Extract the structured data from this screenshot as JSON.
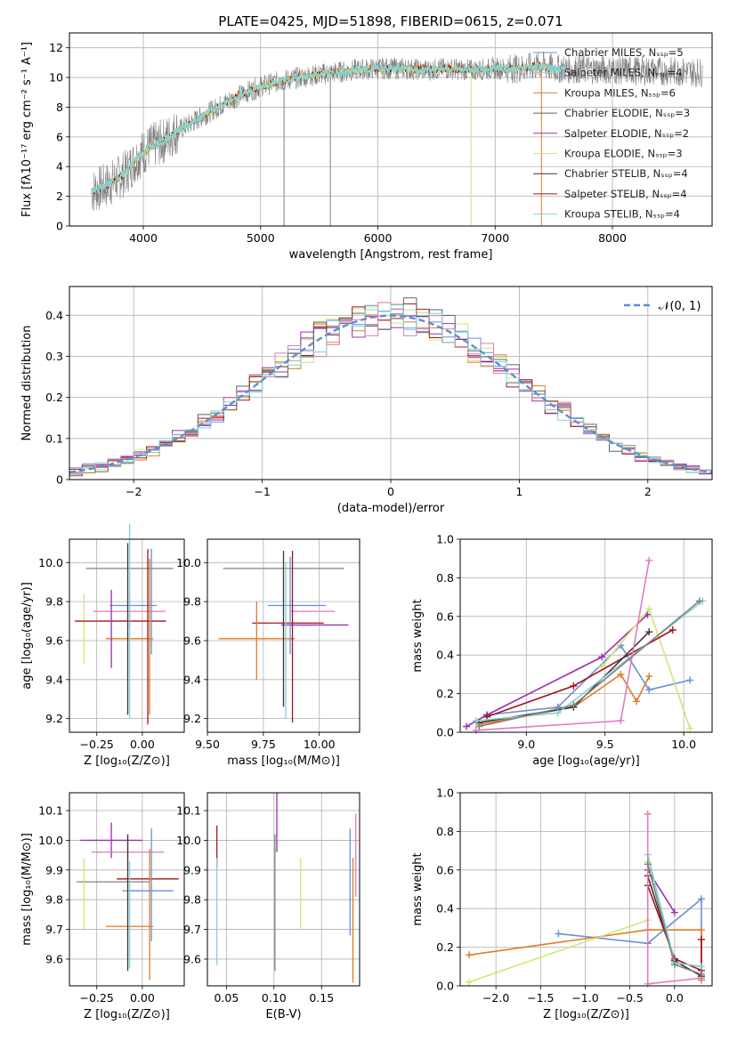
{
  "colors": {
    "chabrier_miles": "#6a8fd8",
    "salpeter_miles": "#9ad2d6",
    "kroupa_miles": "#e07b25",
    "chabrier_elodie": "#5a6a5a",
    "salpeter_elodie": "#9b2fae",
    "kroupa_elodie": "#cfe67a",
    "chabrier_stelib": "#4a3030",
    "salpeter_stelib": "#a3141e",
    "kroupa_stelib": "#7fd3d8",
    "pink": "#e37cba",
    "gray": "#808080",
    "normal": "#5f8ed0"
  },
  "chart_data": [
    {
      "id": "spectrum",
      "type": "line",
      "title": "PLATE=0425, MJD=51898, FIBERID=0615, z=0.071",
      "xlabel": "wavelength [Angstrom, rest frame]",
      "ylabel": "Flux [fλ10⁻¹⁷ erg cm⁻² s⁻¹ A⁻¹]",
      "xlim": [
        3370,
        8850
      ],
      "ylim": [
        0,
        13
      ],
      "xticks": [
        4000,
        5000,
        6000,
        7000,
        8000
      ],
      "yticks": [
        0,
        2,
        4,
        6,
        8,
        10,
        12
      ],
      "legend_position": "top-right",
      "legend": [
        "Chabrier MILES, Nₛₛₚ=5",
        "Salpeter MILES, Nₛₛₚ=4",
        "Kroupa MILES, Nₛₛₚ=6",
        "Chabrier ELODIE, Nₛₛₚ=3",
        "Salpeter ELODIE, Nₛₛₚ=2",
        "Kroupa ELODIE, Nₛₛₚ=3",
        "Chabrier STELIB, Nₛₛₚ=4",
        "Salpeter STELIB, Nₛₛₚ=4",
        "Kroupa STELIB, Nₛₛₚ=4"
      ],
      "continuum": [
        [
          3550,
          2.3
        ],
        [
          3650,
          2.6
        ],
        [
          3750,
          3.0
        ],
        [
          3850,
          3.6
        ],
        [
          3950,
          4.6
        ],
        [
          4050,
          5.3
        ],
        [
          4150,
          5.6
        ],
        [
          4250,
          6.2
        ],
        [
          4400,
          6.9
        ],
        [
          4550,
          7.6
        ],
        [
          4700,
          8.3
        ],
        [
          4850,
          8.9
        ],
        [
          5000,
          9.4
        ],
        [
          5200,
          9.8
        ],
        [
          5400,
          10.1
        ],
        [
          5600,
          10.3
        ],
        [
          5800,
          10.5
        ],
        [
          6000,
          10.6
        ],
        [
          6200,
          10.6
        ],
        [
          6400,
          10.5
        ],
        [
          6600,
          10.6
        ],
        [
          6800,
          10.5
        ],
        [
          7000,
          10.6
        ],
        [
          7200,
          10.6
        ],
        [
          7400,
          10.8
        ],
        [
          7500,
          10.6
        ]
      ],
      "data_extent": [
        3560,
        8770
      ],
      "deep_lines": [
        [
          5200,
          0.0
        ],
        [
          5595,
          0.0
        ],
        [
          6795,
          0.0
        ],
        [
          7395,
          0.0
        ]
      ]
    },
    {
      "id": "residuals",
      "type": "histogram",
      "xlabel": "(data-model)/error",
      "ylabel": "Normed distribution",
      "xlim": [
        -2.5,
        2.5
      ],
      "ylim": [
        0,
        0.47
      ],
      "xticks": [
        -2,
        -1,
        0,
        1,
        2
      ],
      "yticks": [
        0.0,
        0.1,
        0.2,
        0.3,
        0.4
      ],
      "bin_width": 0.1,
      "legend": "𝒩(0, 1)",
      "legend_position": "top-right",
      "reference": {
        "name": "𝒩(0, 1)",
        "mu": 0,
        "sigma": 1
      }
    },
    {
      "id": "age_vs_Z",
      "type": "errorbar",
      "xlabel": "Z [log₁₀(Z/Z⊙)]",
      "ylabel": "age  [log₁₀(age/yr)]",
      "xlim": [
        -0.4,
        0.23
      ],
      "ylim": [
        9.13,
        10.12
      ],
      "xticks": [
        -0.25,
        0.0
      ],
      "yticks": [
        9.2,
        9.4,
        9.6,
        9.8,
        10.0
      ],
      "points": [
        {
          "c": "gray",
          "x": -0.07,
          "xe": 0.24,
          "y": 9.97,
          "ye": 0.0
        },
        {
          "c": "chabrier_miles",
          "x": -0.05,
          "xe": 0.13,
          "y": 9.78,
          "ye": 0.0
        },
        {
          "c": "pink",
          "x": -0.07,
          "xe": 0.2,
          "y": 9.75,
          "ye": 0.09
        },
        {
          "c": "kroupa_elodie",
          "x": -0.32,
          "xe": 0.0,
          "y": 9.66,
          "ye": 0.18
        },
        {
          "c": "salpeter_stelib",
          "x": -0.12,
          "xe": 0.25,
          "y": 9.7,
          "ye": 0.0
        },
        {
          "c": "kroupa_miles",
          "x": -0.07,
          "xe": 0.13,
          "y": 9.61,
          "ye": 0.0
        },
        {
          "c": "salpeter_elodie",
          "x": -0.17,
          "xe": 0.0,
          "y": 9.66,
          "ye": 0.2
        },
        {
          "c": "chabrier_stelib",
          "x": -0.08,
          "xe": 0.0,
          "y": 9.66,
          "ye": 0.44
        },
        {
          "c": "kroupa_stelib",
          "x": -0.07,
          "xe": 0.0,
          "y": 9.7,
          "ye": 0.5
        },
        {
          "c": "salpeter_stelib",
          "x": 0.03,
          "xe": 0.0,
          "y": 9.62,
          "ye": 0.45
        },
        {
          "c": "chabrier_miles",
          "x": 0.05,
          "xe": 0.0,
          "y": 9.8,
          "ye": 0.27
        },
        {
          "c": "kroupa_miles",
          "x": 0.04,
          "xe": 0.0,
          "y": 9.62,
          "ye": 0.4
        }
      ]
    },
    {
      "id": "age_vs_mass",
      "type": "errorbar",
      "xlabel": "mass [log₁₀(M/M⊙)]",
      "xlim": [
        9.5,
        10.18
      ],
      "ylim": [
        9.13,
        10.12
      ],
      "xticks": [
        9.5,
        9.75,
        10.0
      ],
      "yticks": [
        9.2,
        9.4,
        9.6,
        9.8,
        10.0
      ],
      "points": [
        {
          "c": "gray",
          "x": 9.84,
          "xe": 0.27,
          "y": 9.97,
          "ye": 0.0
        },
        {
          "c": "chabrier_miles",
          "x": 9.9,
          "xe": 0.13,
          "y": 9.78,
          "ye": 0.0
        },
        {
          "c": "pink",
          "x": 9.97,
          "xe": 0.1,
          "y": 9.75,
          "ye": 0.0
        },
        {
          "c": "kroupa_miles",
          "x": 9.72,
          "xe": 0.17,
          "y": 9.61,
          "ye": 0.0
        },
        {
          "c": "salpeter_elodie",
          "x": 9.98,
          "xe": 0.15,
          "y": 9.68,
          "ye": 0.0
        },
        {
          "c": "salpeter_stelib",
          "x": 9.86,
          "xe": 0.16,
          "y": 9.69,
          "ye": 0.0
        },
        {
          "c": "kroupa_miles",
          "x": 9.72,
          "xe": 0.0,
          "y": 9.6,
          "ye": 0.2
        },
        {
          "c": "chabrier_stelib",
          "x": 9.84,
          "xe": 0.0,
          "y": 9.66,
          "ye": 0.4
        },
        {
          "c": "kroupa_stelib",
          "x": 9.85,
          "xe": 0.0,
          "y": 9.6,
          "ye": 0.4
        },
        {
          "c": "salpeter_stelib",
          "x": 9.88,
          "xe": 0.0,
          "y": 9.62,
          "ye": 0.44
        },
        {
          "c": "chabrier_miles",
          "x": 9.87,
          "xe": 0.0,
          "y": 9.78,
          "ye": 0.25
        }
      ]
    },
    {
      "id": "weight_vs_age",
      "type": "line",
      "xlabel": "age  [log₁₀(age/yr)]",
      "ylabel": "mass weight",
      "xlim": [
        8.58,
        10.18
      ],
      "ylim": [
        0,
        1.0
      ],
      "xticks": [
        9.0,
        9.5,
        10.0
      ],
      "yticks": [
        0.0,
        0.2,
        0.4,
        0.6,
        0.8,
        1.0
      ],
      "series": [
        {
          "c": "chabrier_miles",
          "pts": [
            [
              8.75,
              0.09
            ],
            [
              9.2,
              0.13
            ],
            [
              9.6,
              0.45
            ],
            [
              9.78,
              0.22
            ],
            [
              10.04,
              0.27
            ]
          ]
        },
        {
          "c": "kroupa_miles",
          "pts": [
            [
              8.7,
              0.04
            ],
            [
              9.3,
              0.13
            ],
            [
              9.6,
              0.3
            ],
            [
              9.7,
              0.16
            ],
            [
              9.78,
              0.29
            ]
          ]
        },
        {
          "c": "salpeter_elodie",
          "pts": [
            [
              8.62,
              0.03
            ],
            [
              8.75,
              0.09
            ],
            [
              9.48,
              0.39
            ],
            [
              9.77,
              0.61
            ]
          ]
        },
        {
          "c": "kroupa_elodie",
          "pts": [
            [
              9.48,
              0.34
            ],
            [
              9.78,
              0.64
            ],
            [
              10.04,
              0.02
            ]
          ]
        },
        {
          "c": "salpeter_stelib",
          "pts": [
            [
              8.75,
              0.08
            ],
            [
              9.3,
              0.24
            ],
            [
              9.93,
              0.53
            ]
          ]
        },
        {
          "c": "chabrier_stelib",
          "pts": [
            [
              8.7,
              0.05
            ],
            [
              9.3,
              0.13
            ],
            [
              9.78,
              0.52
            ]
          ]
        },
        {
          "c": "kroupa_stelib",
          "pts": [
            [
              8.68,
              0.06
            ],
            [
              9.2,
              0.1
            ],
            [
              10.12,
              0.68
            ]
          ]
        },
        {
          "c": "pink",
          "pts": [
            [
              8.68,
              0.01
            ],
            [
              9.6,
              0.06
            ],
            [
              9.78,
              0.89
            ]
          ]
        },
        {
          "c": "gray",
          "pts": [
            [
              8.7,
              0.03
            ],
            [
              9.3,
              0.14
            ],
            [
              10.1,
              0.68
            ]
          ]
        }
      ]
    },
    {
      "id": "mass_vs_Z",
      "type": "errorbar",
      "xlabel": "Z [log₁₀(Z/Z⊙)]",
      "ylabel": "mass [log₁₀(M/M⊙)]",
      "xlim": [
        -0.4,
        0.23
      ],
      "ylim": [
        9.51,
        10.16
      ],
      "xticks": [
        -0.25,
        0.0
      ],
      "yticks": [
        9.6,
        9.7,
        9.8,
        9.9,
        10.0,
        10.1
      ],
      "points": [
        {
          "c": "salpeter_elodie",
          "x": -0.17,
          "xe": 0.17,
          "y": 10.0,
          "ye": 0.06
        },
        {
          "c": "pink",
          "x": -0.08,
          "xe": 0.2,
          "y": 9.96,
          "ye": 0.06
        },
        {
          "c": "salpeter_stelib",
          "x": 0.03,
          "xe": 0.17,
          "y": 9.87,
          "ye": 0.0
        },
        {
          "c": "gray",
          "x": -0.16,
          "xe": 0.2,
          "y": 9.86,
          "ye": 0.0
        },
        {
          "c": "chabrier_miles",
          "x": 0.03,
          "xe": 0.14,
          "y": 9.83,
          "ye": 0.0
        },
        {
          "c": "kroupa_miles",
          "x": -0.07,
          "xe": 0.13,
          "y": 9.71,
          "ye": 0.0
        },
        {
          "c": "kroupa_elodie",
          "x": -0.32,
          "xe": 0.0,
          "y": 9.82,
          "ye": 0.12
        },
        {
          "c": "chabrier_stelib",
          "x": -0.08,
          "xe": 0.0,
          "y": 9.79,
          "ye": 0.23
        },
        {
          "c": "kroupa_stelib",
          "x": -0.07,
          "xe": 0.0,
          "y": 9.75,
          "ye": 0.18
        },
        {
          "c": "chabrier_miles",
          "x": 0.05,
          "xe": 0.0,
          "y": 9.85,
          "ye": 0.19
        },
        {
          "c": "kroupa_miles",
          "x": 0.04,
          "xe": 0.0,
          "y": 9.75,
          "ye": 0.22
        }
      ]
    },
    {
      "id": "mass_vs_ebv",
      "type": "errorbar",
      "xlabel": "E(B-V)",
      "xlim": [
        0.03,
        0.19
      ],
      "ylim": [
        9.51,
        10.16
      ],
      "xticks": [
        0.05,
        0.1,
        0.15
      ],
      "yticks": [
        9.6,
        9.7,
        9.8,
        9.9,
        10.0,
        10.1
      ],
      "points": [
        {
          "c": "salpeter_stelib",
          "x": 0.04,
          "xe": 0.0,
          "y": 9.98,
          "ye": 0.07
        },
        {
          "c": "kroupa_stelib",
          "x": 0.04,
          "xe": 0.0,
          "y": 9.76,
          "ye": 0.18
        },
        {
          "c": "salpeter_elodie",
          "x": 0.103,
          "xe": 0.0,
          "y": 10.06,
          "ye": 0.1
        },
        {
          "c": "gray",
          "x": 0.101,
          "xe": 0.0,
          "y": 9.79,
          "ye": 0.23
        },
        {
          "c": "kroupa_elodie",
          "x": 0.128,
          "xe": 0.0,
          "y": 9.82,
          "ye": 0.12
        },
        {
          "c": "chabrier_miles",
          "x": 0.18,
          "xe": 0.0,
          "y": 9.86,
          "ye": 0.18
        },
        {
          "c": "kroupa_miles",
          "x": 0.183,
          "xe": 0.0,
          "y": 9.73,
          "ye": 0.21
        },
        {
          "c": "pink",
          "x": 0.186,
          "xe": 0.0,
          "y": 9.95,
          "ye": 0.14
        }
      ]
    },
    {
      "id": "weight_vs_Z",
      "type": "line",
      "xlabel": "Z [log₁₀(Z/Z⊙)]",
      "ylabel": "mass weight",
      "xlim": [
        -2.4,
        0.42
      ],
      "ylim": [
        0,
        1.0
      ],
      "xticks": [
        -2.0,
        -1.5,
        -1.0,
        -0.5,
        0.0
      ],
      "yticks": [
        0.0,
        0.2,
        0.4,
        0.6,
        0.8,
        1.0
      ],
      "series": [
        {
          "c": "chabrier_miles",
          "pts": [
            [
              -1.3,
              0.27
            ],
            [
              -0.3,
              0.22
            ],
            [
              0.3,
              0.45
            ],
            [
              0.3,
              0.04
            ]
          ]
        },
        {
          "c": "kroupa_miles",
          "pts": [
            [
              -2.3,
              0.16
            ],
            [
              -0.3,
              0.29
            ],
            [
              0.3,
              0.29
            ],
            [
              0.3,
              0.03
            ]
          ]
        },
        {
          "c": "kroupa_elodie",
          "pts": [
            [
              -2.3,
              0.02
            ],
            [
              -0.3,
              0.34
            ],
            [
              -0.3,
              0.64
            ],
            [
              0.0,
              0.13
            ]
          ]
        },
        {
          "c": "salpeter_elodie",
          "pts": [
            [
              -0.3,
              0.6
            ],
            [
              0.0,
              0.38
            ]
          ]
        },
        {
          "c": "salpeter_stelib",
          "pts": [
            [
              -0.3,
              0.52
            ],
            [
              0.0,
              0.14
            ],
            [
              0.3,
              0.08
            ],
            [
              0.3,
              0.24
            ]
          ]
        },
        {
          "c": "chabrier_stelib",
          "pts": [
            [
              -0.3,
              0.57
            ],
            [
              0.0,
              0.13
            ],
            [
              0.3,
              0.05
            ]
          ]
        },
        {
          "c": "kroupa_stelib",
          "pts": [
            [
              -0.3,
              0.68
            ],
            [
              0.0,
              0.12
            ],
            [
              0.3,
              0.1
            ]
          ]
        },
        {
          "c": "pink",
          "pts": [
            [
              -0.3,
              0.89
            ],
            [
              -0.3,
              0.01
            ],
            [
              0.3,
              0.04
            ]
          ]
        },
        {
          "c": "gray",
          "pts": [
            [
              -0.3,
              0.63
            ],
            [
              0.0,
              0.11
            ],
            [
              0.3,
              0.06
            ]
          ]
        }
      ]
    }
  ]
}
